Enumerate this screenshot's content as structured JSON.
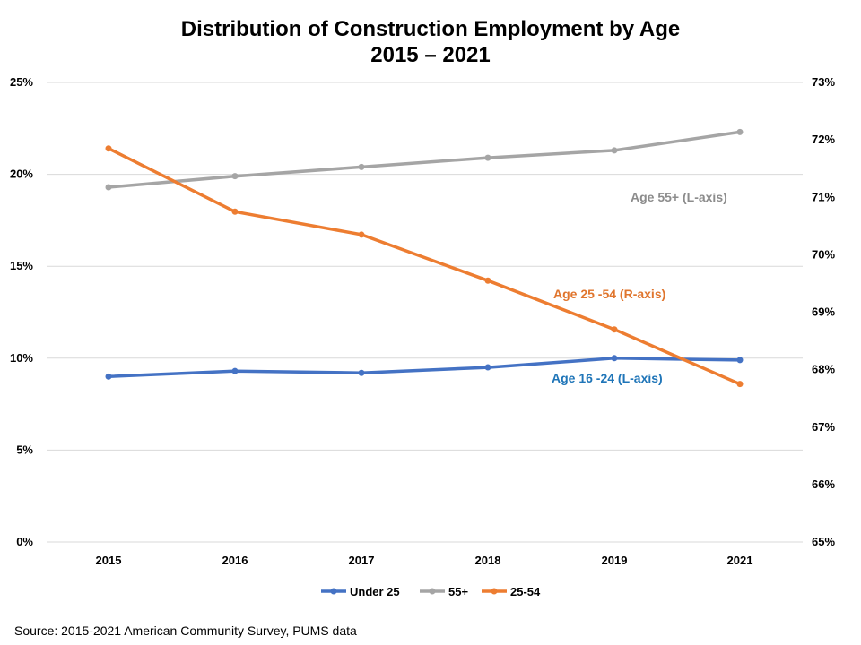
{
  "chart_data": {
    "type": "line",
    "title": [
      "Distribution of Construction Employment by Age",
      "2015 – 2021"
    ],
    "categories": [
      "2015",
      "2016",
      "2017",
      "2018",
      "2019",
      "2021"
    ],
    "y_left": {
      "ylim": [
        0,
        25
      ],
      "ticks": [
        0,
        5,
        10,
        15,
        20,
        25
      ],
      "tick_labels": [
        "0%",
        "5%",
        "10%",
        "15%",
        "20%",
        "25%"
      ]
    },
    "y_right": {
      "ylim": [
        65,
        73
      ],
      "ticks": [
        65,
        66,
        67,
        68,
        69,
        70,
        71,
        72,
        73
      ],
      "tick_labels": [
        "65%",
        "66%",
        "67%",
        "68%",
        "69%",
        "70%",
        "71%",
        "72%",
        "73%"
      ]
    },
    "grid": true,
    "legend_position": "bottom",
    "series": [
      {
        "name": "Under 25",
        "axis": "left",
        "color": "#4472C4",
        "values": [
          9.0,
          9.3,
          9.2,
          9.5,
          10.0,
          9.9
        ]
      },
      {
        "name": "55+",
        "axis": "left",
        "color": "#A5A5A5",
        "values": [
          19.3,
          19.9,
          20.4,
          20.9,
          21.3,
          22.3
        ]
      },
      {
        "name": "25-54",
        "axis": "right",
        "color": "#ED7D31",
        "values": [
          71.85,
          70.75,
          70.35,
          69.55,
          68.7,
          67.75
        ]
      }
    ],
    "annotations": [
      {
        "text": "Age 55+ (L-axis)",
        "color": "#8C8C8C"
      },
      {
        "text": "Age 25 -54 (R-axis)",
        "color": "#E0752D"
      },
      {
        "text": "Age 16 -24 (L-axis)",
        "color": "#1F75B8"
      }
    ]
  },
  "source": "Source: 2015-2021 American Community Survey, PUMS data"
}
